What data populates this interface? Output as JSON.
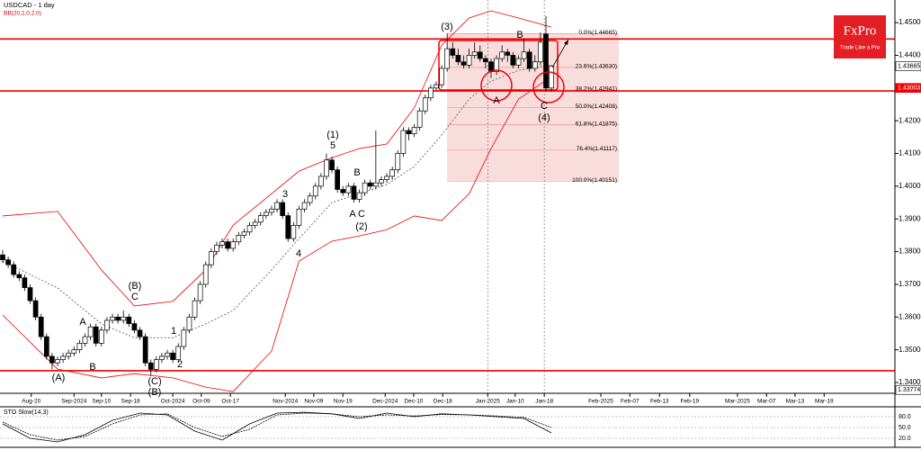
{
  "chart_data": {
    "type": "candlestick",
    "title": "USDCAD - 1 day",
    "subtitle": "BB(20,2,0,2,0)",
    "logo": {
      "brand": "FxPro",
      "tagline": "Trade Like a Pro"
    },
    "xlim": [
      0,
      162.6
    ],
    "ylim": [
      1.3367,
      1.4569
    ],
    "xticks": [
      {
        "value": 5.2,
        "label": "Aug-20"
      },
      {
        "value": 13.0,
        "label": "Sep-2024"
      },
      {
        "value": 18.0,
        "label": "Sep-10"
      },
      {
        "value": 23.3,
        "label": "Sep-18"
      },
      {
        "value": 31.0,
        "label": "Oct-2024"
      },
      {
        "value": 36.2,
        "label": "Oct-09"
      },
      {
        "value": 41.5,
        "label": "Oct-17"
      },
      {
        "value": 51.5,
        "label": "Nov-2024"
      },
      {
        "value": 56.7,
        "label": "Nov-09"
      },
      {
        "value": 62.0,
        "label": "Nov-19"
      },
      {
        "value": 69.7,
        "label": "Dec-2024"
      },
      {
        "value": 74.9,
        "label": "Dec-10"
      },
      {
        "value": 80.2,
        "label": "Dec-18"
      },
      {
        "value": 88.4,
        "label": "Jan-2025"
      },
      {
        "value": 93.4,
        "label": "Jan-10"
      },
      {
        "value": 98.7,
        "label": "Jan-18"
      },
      {
        "value": 109.0,
        "label": "Feb-2025"
      },
      {
        "value": 114.3,
        "label": "Feb-07"
      },
      {
        "value": 119.7,
        "label": "Feb-13"
      },
      {
        "value": 125.2,
        "label": "Feb-19"
      },
      {
        "value": 133.9,
        "label": "Mar-2025"
      },
      {
        "value": 139.2,
        "label": "Mar-07"
      },
      {
        "value": 144.4,
        "label": "Mar-13"
      },
      {
        "value": 149.7,
        "label": "Mar-19"
      }
    ],
    "yticks": [
      {
        "value": 1.45,
        "label": "1.45000"
      },
      {
        "value": 1.44,
        "label": "1.44000"
      },
      {
        "value": 1.42,
        "label": "1.42000"
      },
      {
        "value": 1.41,
        "label": "1.41000"
      },
      {
        "value": 1.4,
        "label": "1.40000"
      },
      {
        "value": 1.39,
        "label": "1.39000"
      },
      {
        "value": 1.38,
        "label": "1.38000"
      },
      {
        "value": 1.37,
        "label": "1.37000"
      },
      {
        "value": 1.36,
        "label": "1.36000"
      },
      {
        "value": 1.35,
        "label": "1.35000"
      },
      {
        "value": 1.34,
        "label": "1.34000"
      }
    ],
    "price_labels": [
      {
        "value": 1.43665,
        "label": "1.43665"
      },
      {
        "value": 1.43003,
        "label": "1.43003"
      },
      {
        "value": 1.33774,
        "label": "1.33774"
      }
    ],
    "hlines": [
      1.445,
      1.4291,
      1.3436
    ],
    "vlines": [
      88.4,
      98.7
    ],
    "ohlc": [
      [
        1.379,
        1.3805,
        1.3765,
        1.3775
      ],
      [
        1.3775,
        1.3785,
        1.375,
        1.376
      ],
      [
        1.376,
        1.377,
        1.372,
        1.373
      ],
      [
        1.373,
        1.374,
        1.371,
        1.372
      ],
      [
        1.372,
        1.373,
        1.368,
        1.369
      ],
      [
        1.369,
        1.37,
        1.364,
        1.365
      ],
      [
        1.365,
        1.366,
        1.359,
        1.36
      ],
      [
        1.36,
        1.361,
        1.353,
        1.354
      ],
      [
        1.354,
        1.355,
        1.347,
        1.348
      ],
      [
        1.348,
        1.349,
        1.344,
        1.346
      ],
      [
        1.346,
        1.348,
        1.345,
        1.347
      ],
      [
        1.347,
        1.349,
        1.346,
        1.348
      ],
      [
        1.348,
        1.35,
        1.347,
        1.349
      ],
      [
        1.349,
        1.351,
        1.348,
        1.35
      ],
      [
        1.35,
        1.353,
        1.349,
        1.352
      ],
      [
        1.352,
        1.355,
        1.351,
        1.354
      ],
      [
        1.354,
        1.358,
        1.353,
        1.357
      ],
      [
        1.357,
        1.358,
        1.351,
        1.352
      ],
      [
        1.352,
        1.357,
        1.351,
        1.356
      ],
      [
        1.356,
        1.36,
        1.355,
        1.359
      ],
      [
        1.359,
        1.361,
        1.358,
        1.36
      ],
      [
        1.36,
        1.361,
        1.358,
        1.359
      ],
      [
        1.359,
        1.362,
        1.358,
        1.36
      ],
      [
        1.36,
        1.361,
        1.357,
        1.358
      ],
      [
        1.358,
        1.359,
        1.355,
        1.356
      ],
      [
        1.356,
        1.357,
        1.353,
        1.354
      ],
      [
        1.354,
        1.355,
        1.345,
        1.346
      ],
      [
        1.346,
        1.347,
        1.342,
        1.344
      ],
      [
        1.344,
        1.348,
        1.343,
        1.347
      ],
      [
        1.347,
        1.349,
        1.346,
        1.348
      ],
      [
        1.348,
        1.35,
        1.347,
        1.349
      ],
      [
        1.349,
        1.35,
        1.346,
        1.347
      ],
      [
        1.347,
        1.352,
        1.346,
        1.351
      ],
      [
        1.351,
        1.357,
        1.35,
        1.356
      ],
      [
        1.356,
        1.361,
        1.355,
        1.36
      ],
      [
        1.36,
        1.366,
        1.359,
        1.365
      ],
      [
        1.365,
        1.371,
        1.364,
        1.37
      ],
      [
        1.37,
        1.377,
        1.369,
        1.376
      ],
      [
        1.376,
        1.381,
        1.375,
        1.38
      ],
      [
        1.38,
        1.383,
        1.379,
        1.382
      ],
      [
        1.382,
        1.384,
        1.381,
        1.383
      ],
      [
        1.383,
        1.384,
        1.38,
        1.381
      ],
      [
        1.381,
        1.384,
        1.38,
        1.383
      ],
      [
        1.383,
        1.386,
        1.382,
        1.385
      ],
      [
        1.385,
        1.387,
        1.384,
        1.386
      ],
      [
        1.386,
        1.389,
        1.385,
        1.388
      ],
      [
        1.388,
        1.39,
        1.387,
        1.389
      ],
      [
        1.389,
        1.392,
        1.388,
        1.391
      ],
      [
        1.391,
        1.393,
        1.39,
        1.392
      ],
      [
        1.392,
        1.394,
        1.391,
        1.393
      ],
      [
        1.393,
        1.396,
        1.392,
        1.395
      ],
      [
        1.395,
        1.396,
        1.39,
        1.391
      ],
      [
        1.391,
        1.392,
        1.383,
        1.384
      ],
      [
        1.384,
        1.389,
        1.383,
        1.388
      ],
      [
        1.388,
        1.394,
        1.387,
        1.393
      ],
      [
        1.393,
        1.396,
        1.392,
        1.395
      ],
      [
        1.395,
        1.398,
        1.394,
        1.397
      ],
      [
        1.397,
        1.401,
        1.396,
        1.4
      ],
      [
        1.4,
        1.404,
        1.399,
        1.403
      ],
      [
        1.403,
        1.41,
        1.402,
        1.408
      ],
      [
        1.408,
        1.409,
        1.404,
        1.405
      ],
      [
        1.405,
        1.406,
        1.398,
        1.399
      ],
      [
        1.399,
        1.4,
        1.397,
        1.398
      ],
      [
        1.398,
        1.401,
        1.397,
        1.4
      ],
      [
        1.4,
        1.401,
        1.395,
        1.396
      ],
      [
        1.396,
        1.399,
        1.395,
        1.398
      ],
      [
        1.398,
        1.402,
        1.397,
        1.401
      ],
      [
        1.401,
        1.402,
        1.399,
        1.4
      ],
      [
        1.4,
        1.417,
        1.399,
        1.401
      ],
      [
        1.401,
        1.403,
        1.4,
        1.402
      ],
      [
        1.402,
        1.404,
        1.401,
        1.403
      ],
      [
        1.403,
        1.406,
        1.402,
        1.405
      ],
      [
        1.405,
        1.411,
        1.404,
        1.41
      ],
      [
        1.41,
        1.418,
        1.409,
        1.417
      ],
      [
        1.417,
        1.418,
        1.414,
        1.416
      ],
      [
        1.416,
        1.419,
        1.415,
        1.418
      ],
      [
        1.418,
        1.424,
        1.417,
        1.423
      ],
      [
        1.423,
        1.428,
        1.422,
        1.427
      ],
      [
        1.427,
        1.431,
        1.426,
        1.43
      ],
      [
        1.43,
        1.432,
        1.429,
        1.431
      ],
      [
        1.431,
        1.437,
        1.43,
        1.436
      ],
      [
        1.436,
        1.4467,
        1.435,
        1.442
      ],
      [
        1.442,
        1.444,
        1.439,
        1.44
      ],
      [
        1.44,
        1.442,
        1.437,
        1.438
      ],
      [
        1.438,
        1.44,
        1.436,
        1.437
      ],
      [
        1.437,
        1.442,
        1.436,
        1.44
      ],
      [
        1.44,
        1.444,
        1.439,
        1.441
      ],
      [
        1.441,
        1.443,
        1.438,
        1.439
      ],
      [
        1.439,
        1.44,
        1.436,
        1.438
      ],
      [
        1.438,
        1.439,
        1.433,
        1.435
      ],
      [
        1.435,
        1.44,
        1.434,
        1.439
      ],
      [
        1.439,
        1.443,
        1.438,
        1.441
      ],
      [
        1.441,
        1.442,
        1.438,
        1.44
      ],
      [
        1.44,
        1.441,
        1.436,
        1.437
      ],
      [
        1.437,
        1.44,
        1.436,
        1.439
      ],
      [
        1.439,
        1.445,
        1.438,
        1.441
      ],
      [
        1.441,
        1.442,
        1.435,
        1.436
      ],
      [
        1.436,
        1.44,
        1.435,
        1.438
      ],
      [
        1.438,
        1.447,
        1.437,
        1.444
      ],
      [
        1.4465,
        1.452,
        1.429,
        1.43
      ],
      [
        1.43,
        1.437,
        1.429,
        1.4367
      ]
    ],
    "bb": {
      "x": [
        0,
        10,
        18,
        24,
        31,
        37,
        42,
        49,
        54,
        60,
        65,
        70,
        75,
        80,
        85,
        89,
        94,
        100
      ],
      "upper": [
        1.3909,
        1.3923,
        1.3744,
        1.3634,
        1.3648,
        1.3744,
        1.3881,
        1.3977,
        1.4046,
        1.4087,
        1.4115,
        1.4129,
        1.4239,
        1.4431,
        1.4514,
        1.4536,
        1.4514,
        1.4486
      ],
      "middle": [
        1.3771,
        1.3689,
        1.3579,
        1.3537,
        1.3537,
        1.3579,
        1.362,
        1.3744,
        1.384,
        1.395,
        1.3977,
        1.4005,
        1.406,
        1.4156,
        1.4266,
        1.4321,
        1.4354,
        1.4371
      ],
      "lower": [
        1.3606,
        1.3441,
        1.3414,
        1.3427,
        1.3414,
        1.3386,
        1.3372,
        1.3496,
        1.3771,
        1.3832,
        1.3848,
        1.3867,
        1.3909,
        1.3895,
        1.3977,
        1.4115,
        1.4266,
        1.4335
      ]
    },
    "fib": [
      {
        "value": 1.44665,
        "label": "0.0%(1.44665)"
      },
      {
        "value": 1.4363,
        "label": "23.6%(1.43630)"
      },
      {
        "value": 1.42941,
        "label": "38.2%(1.42941)"
      },
      {
        "value": 1.42408,
        "label": "50.0%(1.42408)"
      },
      {
        "value": 1.41875,
        "label": "61.8%(1.41875)"
      },
      {
        "value": 1.41117,
        "label": "76.4%(1.41117)"
      },
      {
        "value": 1.40151,
        "label": "100.0%(1.40151)"
      }
    ],
    "annotations": [
      "(A)",
      "A",
      "B",
      "(B)",
      "C",
      "(C)",
      "(B)",
      "1",
      "2",
      "3",
      "4",
      "(1)",
      "5",
      "B",
      "A",
      "C",
      "(2)",
      "(3)",
      "B",
      "A",
      "C",
      "(4)"
    ],
    "stochastic": {
      "title": "STO Slow(14,3)",
      "ylim": [
        0,
        100
      ],
      "yticks": [
        {
          "value": 80,
          "label": "80.0"
        },
        {
          "value": 50,
          "label": "50.0"
        },
        {
          "value": 20,
          "label": "20.0"
        }
      ],
      "x": [
        0,
        5,
        10,
        15,
        20,
        25,
        30,
        35,
        40,
        45,
        50,
        55,
        60,
        65,
        70,
        75,
        80,
        85,
        90,
        95,
        100
      ],
      "k": [
        60,
        20,
        10,
        30,
        70,
        90,
        85,
        40,
        15,
        60,
        90,
        92,
        88,
        75,
        90,
        80,
        88,
        85,
        80,
        75,
        35
      ],
      "d": [
        65,
        30,
        15,
        25,
        60,
        85,
        88,
        50,
        25,
        45,
        85,
        90,
        88,
        80,
        85,
        82,
        86,
        85,
        82,
        78,
        50
      ]
    }
  }
}
